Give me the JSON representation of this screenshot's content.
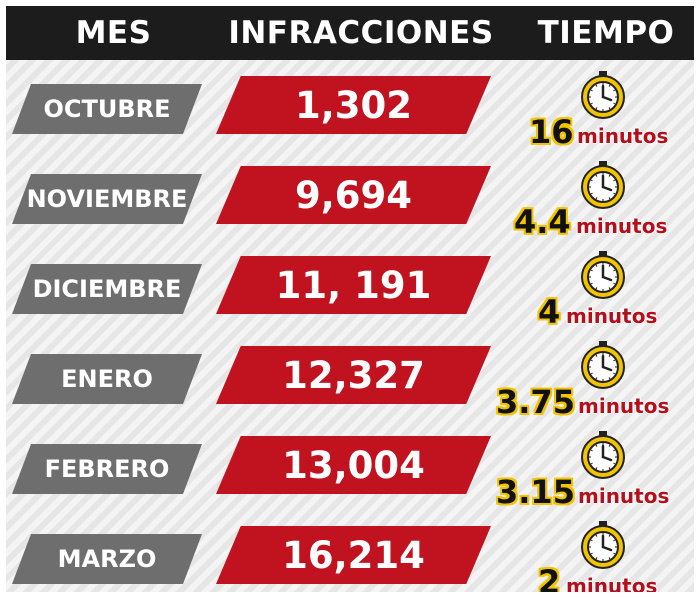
{
  "header": {
    "mes": "MES",
    "infracciones": "INFRACCIONES",
    "tiempo": "TIEMPO"
  },
  "rows": [
    {
      "month": "OCTUBRE",
      "infracciones": "1,302",
      "tiempo": "16",
      "unit": "minutos"
    },
    {
      "month": "NOVIEMBRE",
      "infracciones": "9,694",
      "tiempo": "4.4",
      "unit": "minutos"
    },
    {
      "month": "DICIEMBRE",
      "infracciones": "11, 191",
      "tiempo": "4",
      "unit": "minutos"
    },
    {
      "month": "ENERO",
      "infracciones": "12,327",
      "tiempo": "3.75",
      "unit": "minutos"
    },
    {
      "month": "FEBRERO",
      "infracciones": "13,004",
      "tiempo": "3.15",
      "unit": "minutos"
    },
    {
      "month": "MARZO",
      "infracciones": "16,214",
      "tiempo": "2",
      "unit": "minutos"
    }
  ],
  "colors": {
    "header_bg": "#1c1c1c",
    "month_bg": "#6e6e6e",
    "count_bg": "#c1121f",
    "clock_ring": "#f2c400",
    "minutes_number_outline": "#f2c400",
    "minutes_unit": "#b3101c"
  },
  "icons": {
    "clock": "stopwatch-clock-icon"
  },
  "chart_data": {
    "type": "table",
    "columns": [
      "MES",
      "INFRACCIONES",
      "TIEMPO"
    ],
    "rows": [
      [
        "OCTUBRE",
        1302,
        16
      ],
      [
        "NOVIEMBRE",
        9694,
        4.4
      ],
      [
        "DICIEMBRE",
        11191,
        4
      ],
      [
        "ENERO",
        12327,
        3.75
      ],
      [
        "FEBRERO",
        13004,
        3.15
      ],
      [
        "MARZO",
        16214,
        2
      ]
    ],
    "units": {
      "TIEMPO": "minutos"
    }
  }
}
